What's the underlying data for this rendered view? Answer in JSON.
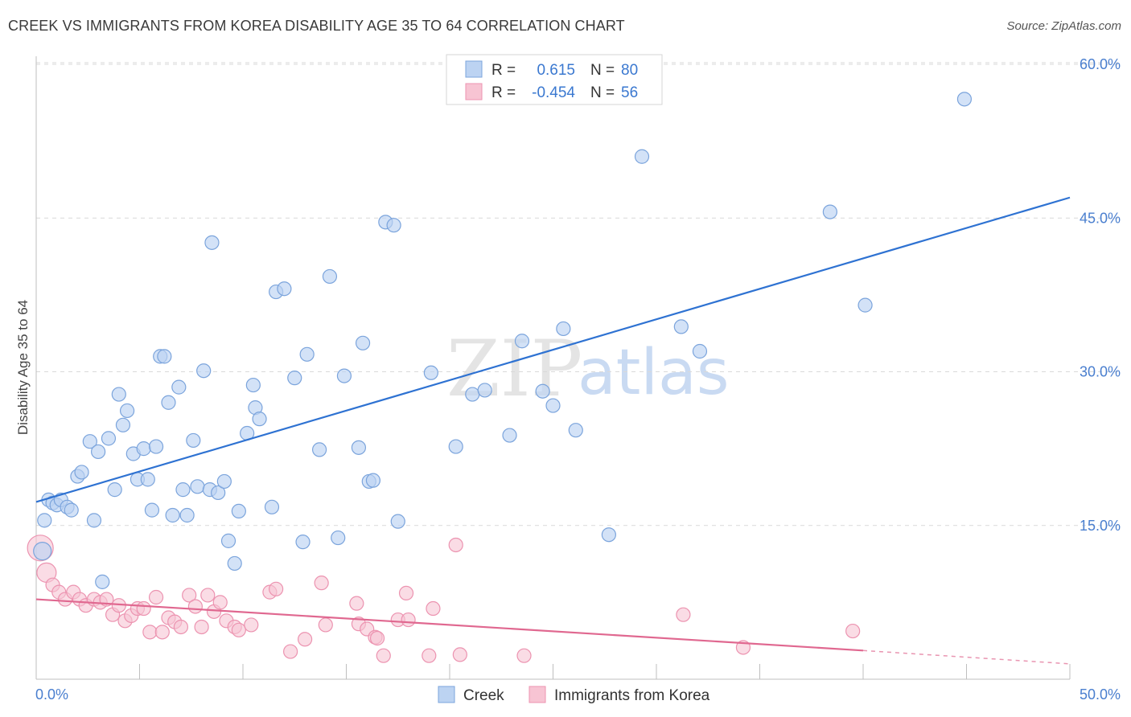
{
  "title": "CREEK VS IMMIGRANTS FROM KOREA DISABILITY AGE 35 TO 64 CORRELATION CHART",
  "source": "Source: ZipAtlas.com",
  "watermark": {
    "zip": "ZIP",
    "atlas": "atlas"
  },
  "colors": {
    "creek_fill": "#bcd3f2",
    "creek_stroke": "#7ba4dc",
    "creek_line": "#2e72d2",
    "korea_fill": "#f7c4d3",
    "korea_stroke": "#ec93b0",
    "korea_line": "#e06890",
    "grid": "#d9d9d9",
    "tick": "#4a7fcf"
  },
  "legend": {
    "rows": [
      {
        "r_label": "R =",
        "r_value": "0.615",
        "n_label": "N =",
        "n_value": "80"
      },
      {
        "r_label": "R =",
        "r_value": "-0.454",
        "n_label": "N =",
        "n_value": "56"
      }
    ]
  },
  "chart_data": {
    "type": "scatter",
    "ylabel": "Disability Age 35 to 64",
    "xlim": [
      0,
      50
    ],
    "ylim": [
      0,
      60
    ],
    "x_tick_labels": [
      "0.0%",
      "50.0%"
    ],
    "y_tick_labels": [
      "15.0%",
      "30.0%",
      "45.0%",
      "60.0%"
    ],
    "y_ticks": [
      15,
      30,
      45,
      60
    ],
    "series": [
      {
        "name": "Creek",
        "trend": {
          "x0": 0,
          "y0": 17.3,
          "x1": 50,
          "y1": 47.0
        },
        "points": [
          [
            0.3,
            12.5
          ],
          [
            0.4,
            15.5
          ],
          [
            0.6,
            17.5
          ],
          [
            0.8,
            17.2
          ],
          [
            1.0,
            17.0
          ],
          [
            1.2,
            17.5
          ],
          [
            1.5,
            16.8
          ],
          [
            1.7,
            16.5
          ],
          [
            2.0,
            19.8
          ],
          [
            2.2,
            20.2
          ],
          [
            2.6,
            23.2
          ],
          [
            2.8,
            15.5
          ],
          [
            3.0,
            22.2
          ],
          [
            3.2,
            9.5
          ],
          [
            3.5,
            23.5
          ],
          [
            3.8,
            18.5
          ],
          [
            4.0,
            27.8
          ],
          [
            4.2,
            24.8
          ],
          [
            4.4,
            26.2
          ],
          [
            4.7,
            22.0
          ],
          [
            4.9,
            19.5
          ],
          [
            5.2,
            22.5
          ],
          [
            5.4,
            19.5
          ],
          [
            5.6,
            16.5
          ],
          [
            5.8,
            22.7
          ],
          [
            6.0,
            31.5
          ],
          [
            6.2,
            31.5
          ],
          [
            6.4,
            27.0
          ],
          [
            6.6,
            16.0
          ],
          [
            6.9,
            28.5
          ],
          [
            7.1,
            18.5
          ],
          [
            7.3,
            16.0
          ],
          [
            7.6,
            23.3
          ],
          [
            7.8,
            18.8
          ],
          [
            8.1,
            30.1
          ],
          [
            8.4,
            18.5
          ],
          [
            8.5,
            42.6
          ],
          [
            8.8,
            18.2
          ],
          [
            9.1,
            19.3
          ],
          [
            9.3,
            13.5
          ],
          [
            9.6,
            11.3
          ],
          [
            9.8,
            16.4
          ],
          [
            10.2,
            24.0
          ],
          [
            10.5,
            28.7
          ],
          [
            10.6,
            26.5
          ],
          [
            10.8,
            25.4
          ],
          [
            11.4,
            16.8
          ],
          [
            11.6,
            37.8
          ],
          [
            12.0,
            38.1
          ],
          [
            12.5,
            29.4
          ],
          [
            12.9,
            13.4
          ],
          [
            13.1,
            31.7
          ],
          [
            13.7,
            22.4
          ],
          [
            14.2,
            39.3
          ],
          [
            14.6,
            13.8
          ],
          [
            14.9,
            29.6
          ],
          [
            15.6,
            22.6
          ],
          [
            15.8,
            32.8
          ],
          [
            16.1,
            19.3
          ],
          [
            16.3,
            19.4
          ],
          [
            16.9,
            44.6
          ],
          [
            17.3,
            44.3
          ],
          [
            17.5,
            15.4
          ],
          [
            19.1,
            29.9
          ],
          [
            20.3,
            22.7
          ],
          [
            21.1,
            27.8
          ],
          [
            21.7,
            28.2
          ],
          [
            22.9,
            23.8
          ],
          [
            23.5,
            33.0
          ],
          [
            24.5,
            28.1
          ],
          [
            25.0,
            26.7
          ],
          [
            25.5,
            34.2
          ],
          [
            26.1,
            24.3
          ],
          [
            27.7,
            14.1
          ],
          [
            29.3,
            51.0
          ],
          [
            31.2,
            34.4
          ],
          [
            32.1,
            32.0
          ],
          [
            38.4,
            45.6
          ],
          [
            40.1,
            36.5
          ],
          [
            44.9,
            56.6
          ]
        ]
      },
      {
        "name": "Immigrants from Korea",
        "trend": {
          "x0": 0,
          "y0": 7.8,
          "x1": 40,
          "y1": 2.8,
          "dash_to_x": 50,
          "dash_to_y": 1.5
        },
        "points": [
          [
            0.2,
            12.8
          ],
          [
            0.5,
            10.4
          ],
          [
            0.8,
            9.2
          ],
          [
            1.1,
            8.5
          ],
          [
            1.4,
            7.8
          ],
          [
            1.8,
            8.5
          ],
          [
            2.1,
            7.8
          ],
          [
            2.4,
            7.2
          ],
          [
            2.8,
            7.8
          ],
          [
            3.1,
            7.5
          ],
          [
            3.4,
            7.8
          ],
          [
            3.7,
            6.3
          ],
          [
            4.0,
            7.2
          ],
          [
            4.3,
            5.7
          ],
          [
            4.6,
            6.2
          ],
          [
            4.9,
            6.9
          ],
          [
            5.2,
            6.9
          ],
          [
            5.5,
            4.6
          ],
          [
            5.8,
            8.0
          ],
          [
            6.1,
            4.6
          ],
          [
            6.4,
            6.0
          ],
          [
            6.7,
            5.6
          ],
          [
            7.0,
            5.1
          ],
          [
            7.4,
            8.2
          ],
          [
            7.7,
            7.1
          ],
          [
            8.0,
            5.1
          ],
          [
            8.3,
            8.2
          ],
          [
            8.6,
            6.6
          ],
          [
            8.9,
            7.5
          ],
          [
            9.2,
            5.7
          ],
          [
            9.6,
            5.1
          ],
          [
            9.8,
            4.8
          ],
          [
            10.4,
            5.3
          ],
          [
            11.3,
            8.5
          ],
          [
            11.6,
            8.8
          ],
          [
            12.3,
            2.7
          ],
          [
            13.0,
            3.9
          ],
          [
            13.8,
            9.4
          ],
          [
            14.0,
            5.3
          ],
          [
            15.5,
            7.4
          ],
          [
            15.6,
            5.4
          ],
          [
            16.0,
            4.9
          ],
          [
            16.4,
            4.1
          ],
          [
            16.5,
            4.0
          ],
          [
            16.8,
            2.3
          ],
          [
            17.5,
            5.8
          ],
          [
            17.9,
            8.4
          ],
          [
            18.0,
            5.8
          ],
          [
            19.0,
            2.3
          ],
          [
            19.2,
            6.9
          ],
          [
            20.3,
            13.1
          ],
          [
            20.5,
            2.4
          ],
          [
            23.6,
            2.3
          ],
          [
            31.3,
            6.3
          ],
          [
            34.2,
            3.1
          ],
          [
            39.5,
            4.7
          ]
        ]
      }
    ]
  },
  "bottom_legend": [
    "Creek",
    "Immigrants from Korea"
  ]
}
